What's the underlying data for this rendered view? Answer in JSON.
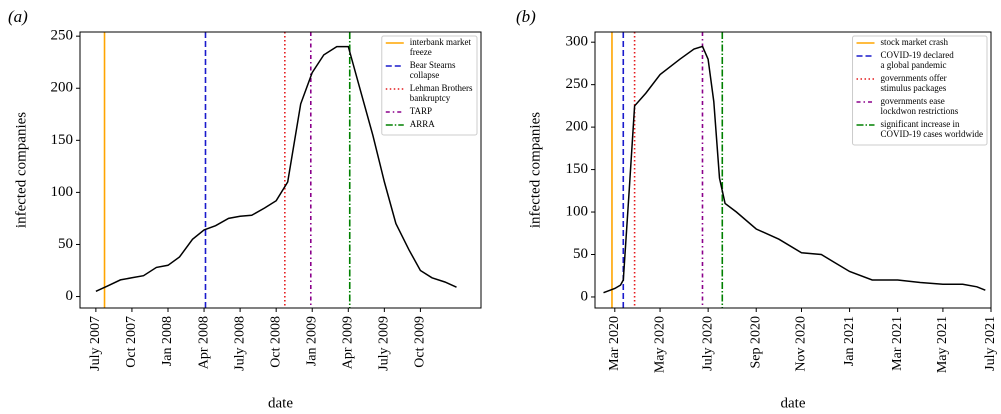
{
  "chart_data": [
    {
      "type": "line",
      "panel_label": "(a)",
      "x_label": "date",
      "y_label": "infected companies",
      "x": [
        2007.5,
        2007.58,
        2007.67,
        2007.75,
        2007.83,
        2007.92,
        2008.0,
        2008.08,
        2008.17,
        2008.25,
        2008.33,
        2008.42,
        2008.5,
        2008.58,
        2008.67,
        2008.75,
        2008.83,
        2008.92,
        2009.0,
        2009.08,
        2009.17,
        2009.25,
        2009.33,
        2009.42,
        2009.5,
        2009.58,
        2009.67,
        2009.75,
        2009.83,
        2009.92,
        2010.0
      ],
      "series": [
        {
          "color": "#000000",
          "values": [
            5,
            10,
            16,
            18,
            20,
            28,
            30,
            38,
            55,
            64,
            68,
            75,
            77,
            78,
            85,
            92,
            110,
            185,
            215,
            232,
            240,
            240,
            200,
            155,
            110,
            70,
            45,
            25,
            18,
            14,
            9
          ]
        }
      ],
      "vlines": [
        {
          "name": "interbank market\nfreeze",
          "color": "#ffa500",
          "style": "solid",
          "x": 2007.56
        },
        {
          "name": "Bear Stearns\ncollapse",
          "color": "#1a1acc",
          "style": "dashed",
          "x": 2008.26
        },
        {
          "name": "Lehman Brothers\nbankruptcy",
          "color": "#e41a1c",
          "style": "dotted",
          "x": 2008.81
        },
        {
          "name": "TARP",
          "color": "#8b008b",
          "style": "dashdot2",
          "x": 2008.99
        },
        {
          "name": "ARRA",
          "color": "#008000",
          "style": "dashdot",
          "x": 2009.26
        }
      ],
      "xlim": [
        2007.39,
        2010.17
      ],
      "xticks": [
        {
          "value": 2007.5,
          "label": "July 2007"
        },
        {
          "value": 2007.75,
          "label": "Oct 2007"
        },
        {
          "value": 2008.0,
          "label": "Jan 2008"
        },
        {
          "value": 2008.25,
          "label": "Apr 2008"
        },
        {
          "value": 2008.5,
          "label": "July 2008"
        },
        {
          "value": 2008.75,
          "label": "Oct 2008"
        },
        {
          "value": 2009.0,
          "label": "Jan 2009"
        },
        {
          "value": 2009.25,
          "label": "Apr 2009"
        },
        {
          "value": 2009.5,
          "label": "July 2009"
        },
        {
          "value": 2009.75,
          "label": "Oct 2009"
        }
      ],
      "ylim": [
        -11,
        254
      ],
      "yticks": [
        0,
        50,
        100,
        150,
        200,
        250
      ],
      "grid": false,
      "legend": "upper right"
    },
    {
      "type": "line",
      "panel_label": "(b)",
      "x_label": "date",
      "y_label": "infected companies",
      "x": [
        2020.13,
        2020.17,
        2020.19,
        2020.2,
        2020.22,
        2020.24,
        2020.28,
        2020.33,
        2020.4,
        2020.45,
        2020.48,
        2020.5,
        2020.52,
        2020.54,
        2020.56,
        2020.6,
        2020.67,
        2020.75,
        2020.83,
        2020.9,
        2020.95,
        2021.0,
        2021.08,
        2021.17,
        2021.25,
        2021.33,
        2021.4,
        2021.45,
        2021.48
      ],
      "series": [
        {
          "color": "#000000",
          "values": [
            5,
            10,
            14,
            20,
            120,
            225,
            240,
            262,
            280,
            292,
            295,
            280,
            230,
            140,
            110,
            100,
            80,
            68,
            52,
            50,
            40,
            30,
            20,
            20,
            17,
            15,
            15,
            12,
            8
          ]
        }
      ],
      "vlines": [
        {
          "name": "stock market crash",
          "color": "#ffa500",
          "style": "solid",
          "x": 2020.16
        },
        {
          "name": "COVID-19 declared\na global pandemic",
          "color": "#1a1acc",
          "style": "dashed",
          "x": 2020.2
        },
        {
          "name": "governments offer\nstimulus packages",
          "color": "#e41a1c",
          "style": "dotted",
          "x": 2020.24
        },
        {
          "name": "governments ease\nlockdwon restrictions",
          "color": "#8b008b",
          "style": "dashdot2",
          "x": 2020.48
        },
        {
          "name": "significant increase in\nCOVID-19 cases worldwide",
          "color": "#008000",
          "style": "dashdot",
          "x": 2020.55
        }
      ],
      "xlim": [
        2020.1,
        2021.5
      ],
      "xticks": [
        {
          "value": 2020.17,
          "label": "Mar 2020"
        },
        {
          "value": 2020.33,
          "label": "May 2020"
        },
        {
          "value": 2020.5,
          "label": "July 2020"
        },
        {
          "value": 2020.67,
          "label": "Sep 2020"
        },
        {
          "value": 2020.83,
          "label": "Nov 2020"
        },
        {
          "value": 2021.0,
          "label": "Jan 2021"
        },
        {
          "value": 2021.17,
          "label": "Mar 2021"
        },
        {
          "value": 2021.33,
          "label": "May 2021"
        },
        {
          "value": 2021.5,
          "label": "July 2021"
        }
      ],
      "ylim": [
        -13,
        312
      ],
      "yticks": [
        0,
        50,
        100,
        150,
        200,
        250,
        300
      ],
      "grid": false,
      "legend": "upper right"
    }
  ]
}
